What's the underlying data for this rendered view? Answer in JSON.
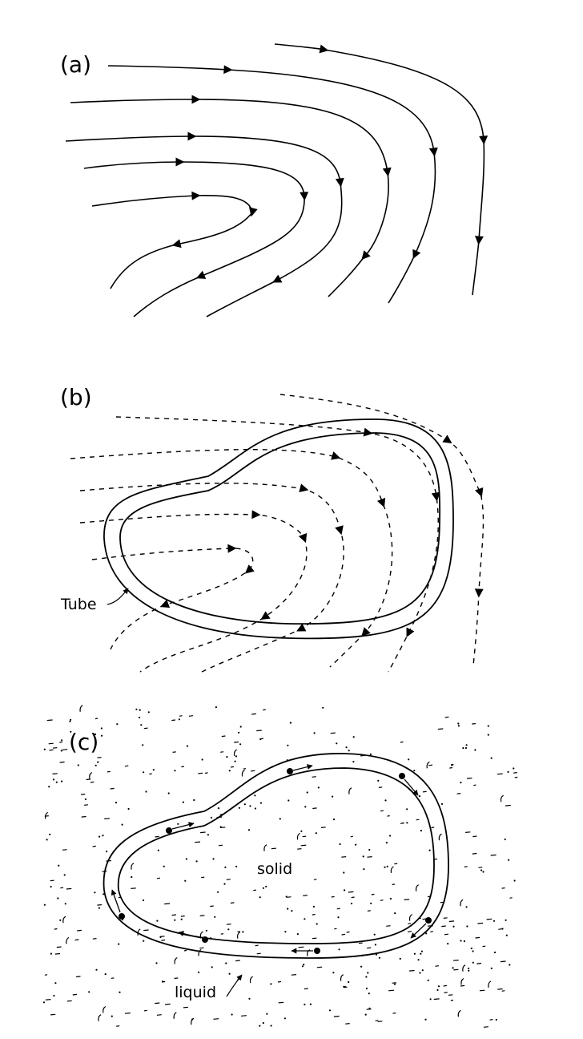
{
  "panels": {
    "a": {
      "label": "(a)"
    },
    "b": {
      "label": "(b)",
      "tube_label": "Tube"
    },
    "c": {
      "label": "(c)",
      "solid_label": "solid",
      "liquid_label": "liquid"
    }
  },
  "colors": {
    "ink": "#000000",
    "background": "#ffffff"
  }
}
